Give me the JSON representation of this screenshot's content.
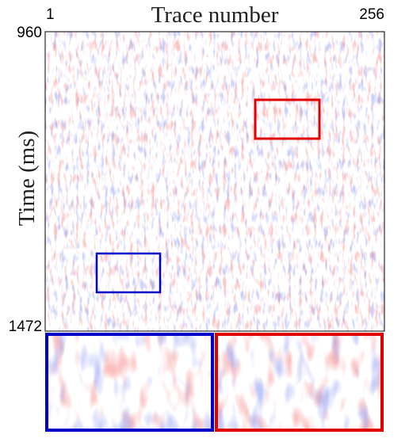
{
  "chart_data": {
    "type": "image",
    "title": "Trace number",
    "ylabel": "Time (ms)",
    "xlim": [
      1,
      256
    ],
    "xticks": [
      1,
      256
    ],
    "ylim": [
      960,
      1472
    ],
    "yticks": [
      960,
      1472
    ]
  }
}
